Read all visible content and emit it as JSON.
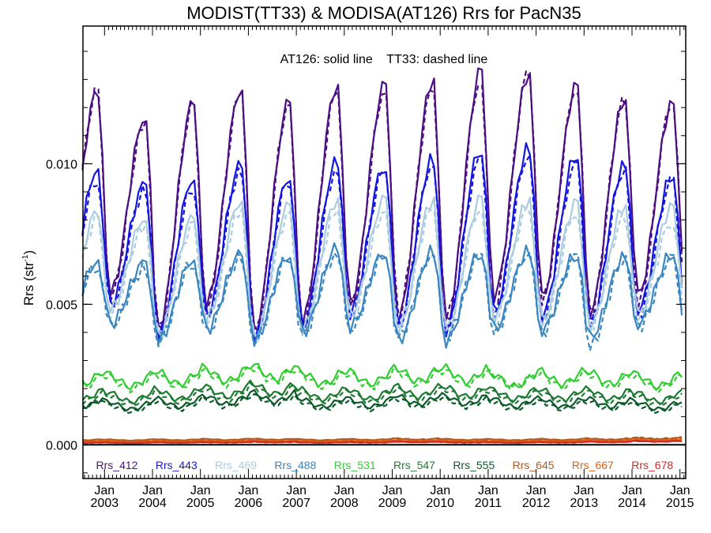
{
  "chart_data": {
    "type": "line",
    "title": "MODIST(TT33) & MODISA(AT126)  Rrs for PacN35",
    "annotation": "AT126: solid line    TT33: dashed line",
    "ylabel": "Rrs (str",
    "ylabel_sup": "-1",
    "ylabel_end": ")",
    "xlabel": "",
    "ylim": [
      -0.0012,
      0.0149
    ],
    "xlim": [
      2002.55,
      2015.12
    ],
    "y_ticks": [
      {
        "value": 0.0,
        "label": "0.000"
      },
      {
        "value": 0.005,
        "label": "0.005"
      },
      {
        "value": 0.01,
        "label": "0.010"
      }
    ],
    "x_ticks": [
      {
        "value": 2003.0,
        "month": "Jan",
        "year": "2003"
      },
      {
        "value": 2004.0,
        "month": "Jan",
        "year": "2004"
      },
      {
        "value": 2005.0,
        "month": "Jan",
        "year": "2005"
      },
      {
        "value": 2006.0,
        "month": "Jan",
        "year": "2006"
      },
      {
        "value": 2007.0,
        "month": "Jan",
        "year": "2007"
      },
      {
        "value": 2008.0,
        "month": "Jan",
        "year": "2008"
      },
      {
        "value": 2009.0,
        "month": "Jan",
        "year": "2009"
      },
      {
        "value": 2010.0,
        "month": "Jan",
        "year": "2010"
      },
      {
        "value": 2011.0,
        "month": "Jan",
        "year": "2011"
      },
      {
        "value": 2012.0,
        "month": "Jan",
        "year": "2012"
      },
      {
        "value": 2013.0,
        "month": "Jan",
        "year": "2013"
      },
      {
        "value": 2014.0,
        "month": "Jan",
        "year": "2014"
      },
      {
        "value": 2015.0,
        "month": "Jan",
        "year": "2015"
      }
    ],
    "grid": false,
    "legend_position": "bottom inside plot",
    "series_style": "solid = AT126, dashed = TT33",
    "series": [
      {
        "name": "Rrs_412",
        "color": "#4b0f82",
        "peaks": [
          0.0126,
          0.0117,
          0.0122,
          0.0127,
          0.0122,
          0.0128,
          0.0128,
          0.013,
          0.0133,
          0.0132,
          0.0128,
          0.0123,
          0.0122
        ],
        "troughs": [
          0.005,
          0.0054,
          0.0041,
          0.005,
          0.004,
          0.0044,
          0.005,
          0.0045,
          0.0043,
          0.0053,
          0.0052,
          0.0047,
          0.0053
        ],
        "peaks_tt33": [
          0.0126,
          0.0115,
          0.0121,
          0.0126,
          0.0121,
          0.0126,
          0.0126,
          0.0127,
          0.013,
          0.0133,
          0.0128,
          0.0123,
          0.0123
        ],
        "troughs_tt33": [
          0.005,
          0.0053,
          0.0041,
          0.0049,
          0.004,
          0.0043,
          0.0049,
          0.0047,
          0.0045,
          0.005,
          0.0051,
          0.0047,
          0.005
        ]
      },
      {
        "name": "Rrs_443",
        "color": "#1515e0",
        "peaks": [
          0.0098,
          0.0093,
          0.0095,
          0.01,
          0.0096,
          0.0101,
          0.01,
          0.0102,
          0.0106,
          0.0106,
          0.0104,
          0.01,
          0.0096
        ],
        "troughs": [
          0.0043,
          0.005,
          0.0039,
          0.0046,
          0.0038,
          0.0042,
          0.0047,
          0.0042,
          0.0041,
          0.0047,
          0.0046,
          0.0043,
          0.0048
        ],
        "peaks_tt33": [
          0.0095,
          0.0091,
          0.0092,
          0.0098,
          0.0094,
          0.0098,
          0.0098,
          0.01,
          0.0102,
          0.0103,
          0.01,
          0.0098,
          0.0094
        ],
        "troughs_tt33": [
          0.0043,
          0.0049,
          0.0039,
          0.0045,
          0.0038,
          0.0041,
          0.0046,
          0.0043,
          0.0042,
          0.0046,
          0.0045,
          0.0043,
          0.0046
        ]
      },
      {
        "name": "Rrs_469",
        "color": "#a9cce0",
        "peaks": [
          0.0083,
          0.0081,
          0.0081,
          0.0087,
          0.0085,
          0.0087,
          0.0087,
          0.0087,
          0.0087,
          0.0087,
          0.0086,
          0.0085,
          0.0085
        ],
        "troughs": [
          0.0042,
          0.0048,
          0.0039,
          0.0045,
          0.0038,
          0.0041,
          0.0046,
          0.0041,
          0.004,
          0.0045,
          0.0044,
          0.0042,
          0.0046
        ],
        "peaks_tt33": [
          0.008,
          0.0078,
          0.0078,
          0.0083,
          0.0082,
          0.0083,
          0.0083,
          0.0084,
          0.0084,
          0.0084,
          0.0083,
          0.0081,
          0.008
        ],
        "troughs_tt33": [
          0.0042,
          0.0047,
          0.0039,
          0.0044,
          0.0038,
          0.004,
          0.0045,
          0.0042,
          0.0041,
          0.0044,
          0.0043,
          0.0042,
          0.0045
        ]
      },
      {
        "name": "Rrs_488",
        "color": "#3a86c0",
        "peaks": [
          0.0065,
          0.0065,
          0.0066,
          0.0068,
          0.0068,
          0.007,
          0.0069,
          0.0069,
          0.0069,
          0.0069,
          0.0068,
          0.0067,
          0.0068
        ],
        "troughs": [
          0.0039,
          0.0043,
          0.0037,
          0.0041,
          0.0037,
          0.004,
          0.0042,
          0.0037,
          0.0037,
          0.0041,
          0.0041,
          0.0038,
          0.0043
        ],
        "peaks_tt33": [
          0.0064,
          0.0063,
          0.0065,
          0.0067,
          0.0067,
          0.0068,
          0.0068,
          0.0068,
          0.0068,
          0.0068,
          0.0067,
          0.0066,
          0.0066
        ],
        "troughs_tt33": [
          0.0039,
          0.0042,
          0.0037,
          0.004,
          0.0037,
          0.0039,
          0.0041,
          0.0038,
          0.0038,
          0.004,
          0.004,
          0.0035,
          0.0042
        ]
      },
      {
        "name": "Rrs_531",
        "color": "#32cd32",
        "levels": [
          0.0024,
          0.0023,
          0.0024,
          0.0025,
          0.0026,
          0.0024,
          0.0024,
          0.0025,
          0.0025,
          0.0023,
          0.0024,
          0.0024,
          0.0023
        ],
        "levels_tt33": [
          0.0023,
          0.0022,
          0.0023,
          0.0024,
          0.0025,
          0.0023,
          0.0023,
          0.0024,
          0.0024,
          0.0023,
          0.0023,
          0.0023,
          0.0022
        ]
      },
      {
        "name": "Rrs_547",
        "color": "#1e7a32",
        "levels": [
          0.0018,
          0.0017,
          0.0018,
          0.0019,
          0.002,
          0.0018,
          0.0018,
          0.0019,
          0.0019,
          0.0018,
          0.0018,
          0.0018,
          0.0017
        ],
        "levels_tt33": [
          0.0017,
          0.0016,
          0.0017,
          0.0018,
          0.0019,
          0.0017,
          0.0017,
          0.0018,
          0.0018,
          0.0017,
          0.0017,
          0.0017,
          0.0016
        ]
      },
      {
        "name": "Rrs_555",
        "color": "#0c5a2a",
        "levels": [
          0.0015,
          0.0014,
          0.0015,
          0.0016,
          0.0017,
          0.0015,
          0.0015,
          0.0016,
          0.0016,
          0.0015,
          0.0015,
          0.0015,
          0.0014
        ],
        "levels_tt33": [
          0.0015,
          0.0013,
          0.0014,
          0.0015,
          0.0016,
          0.0014,
          0.0014,
          0.0015,
          0.0015,
          0.0014,
          0.0014,
          0.0014,
          0.0013
        ]
      },
      {
        "name": "Rrs_645",
        "color": "#b5591e",
        "levels": [
          0.00018,
          0.00017,
          0.00018,
          0.00019,
          0.0002,
          0.00018,
          0.00019,
          0.0002,
          0.00019,
          0.00018,
          0.00019,
          0.0002,
          0.00022
        ],
        "levels_tt33": [
          0.00016,
          0.00016,
          0.00017,
          0.00018,
          0.00019,
          0.00017,
          0.00018,
          0.00021,
          0.00018,
          0.00017,
          0.00018,
          0.00021,
          0.00024
        ]
      },
      {
        "name": "Rrs_667",
        "color": "#e06010",
        "levels": [
          0.00012,
          0.00011,
          0.00012,
          0.00013,
          0.00014,
          0.00012,
          0.00013,
          0.00014,
          0.00013,
          0.00012,
          0.00013,
          0.00014,
          0.00016
        ],
        "levels_tt33": [
          0.00011,
          0.00011,
          0.00012,
          0.00012,
          0.00013,
          0.00012,
          0.00012,
          0.00015,
          0.00012,
          0.00012,
          0.00012,
          0.00015,
          0.00018
        ]
      },
      {
        "name": "Rrs_678",
        "color": "#d02a24",
        "levels": [
          8e-05,
          7e-05,
          8e-05,
          9e-05,
          0.0001,
          8e-05,
          9e-05,
          0.0001,
          9e-05,
          8e-05,
          9e-05,
          0.0001,
          0.00012
        ],
        "levels_tt33": [
          7e-05,
          7e-05,
          8e-05,
          8e-05,
          9e-05,
          8e-05,
          8e-05,
          0.00011,
          8e-05,
          8e-05,
          8e-05,
          0.00011,
          0.00013
        ]
      }
    ]
  }
}
